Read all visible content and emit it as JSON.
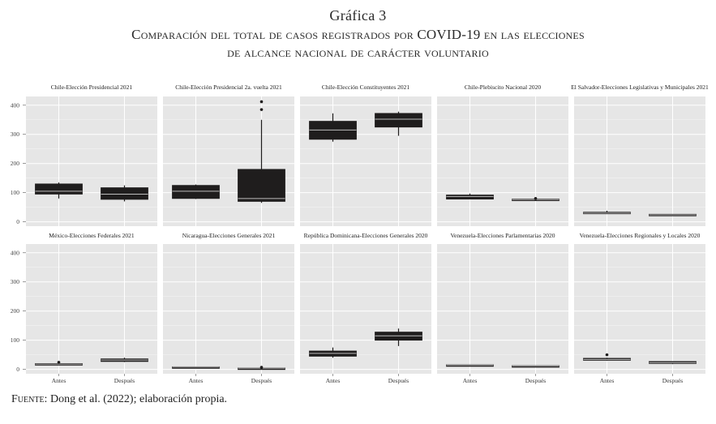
{
  "heading": {
    "line1": "Gráfica 3",
    "line2": "Comparación del total de casos registrados por COVID-19 en las elecciones",
    "line3": "de alcance nacional de carácter voluntario"
  },
  "source": {
    "label": "Fuente:",
    "text": " Dong et al. (2022); elaboración propia."
  },
  "style": {
    "panel_bg": "#e6e6e6",
    "grid_color": "#ffffff",
    "box_fill": "#1f1d1d",
    "median_color": "#bdbdbd"
  },
  "chart_data": {
    "type": "boxplot",
    "categories": [
      "Antes",
      "Después"
    ],
    "y_ticks": [
      0,
      100,
      200,
      300,
      400
    ],
    "ylim": [
      -15,
      430
    ],
    "grid": true,
    "facets": [
      {
        "title": "Chile-Elección Presidencial 2021",
        "boxes": [
          {
            "category": "Antes",
            "min": 80,
            "q1": 95,
            "median": 105,
            "q3": 130,
            "max": 135,
            "outliers": []
          },
          {
            "category": "Después",
            "min": 70,
            "q1": 77,
            "median": 95,
            "q3": 117,
            "max": 125,
            "outliers": []
          }
        ]
      },
      {
        "title": "Chile-Elección Presidencial 2a. vuelta 2021",
        "boxes": [
          {
            "category": "Antes",
            "min": 78,
            "q1": 80,
            "median": 105,
            "q3": 125,
            "max": 128,
            "outliers": []
          },
          {
            "category": "Después",
            "min": 65,
            "q1": 70,
            "median": 80,
            "q3": 180,
            "max": 350,
            "outliers": [
              385,
              412
            ]
          }
        ]
      },
      {
        "title": "Chile-Elección Constituyentes 2021",
        "boxes": [
          {
            "category": "Antes",
            "min": 275,
            "q1": 283,
            "median": 315,
            "q3": 345,
            "max": 372,
            "outliers": []
          },
          {
            "category": "Después",
            "min": 295,
            "q1": 325,
            "median": 352,
            "q3": 372,
            "max": 378,
            "outliers": []
          }
        ]
      },
      {
        "title": "Chile-Plebiscito Nacional 2020",
        "boxes": [
          {
            "category": "Antes",
            "min": 78,
            "q1": 78,
            "median": 87,
            "q3": 92,
            "max": 97,
            "outliers": []
          },
          {
            "category": "Después",
            "min": 74,
            "q1": 74,
            "median": 76,
            "q3": 78,
            "max": 79,
            "outliers": [
              80
            ]
          }
        ]
      },
      {
        "title": "El Salvador-Elecciones Legislativas y Municipales 2021",
        "boxes": [
          {
            "category": "Antes",
            "min": 28,
            "q1": 28,
            "median": 30,
            "q3": 33,
            "max": 38,
            "outliers": []
          },
          {
            "category": "Después",
            "min": 23,
            "q1": 23,
            "median": 24,
            "q3": 26,
            "max": 26,
            "outliers": []
          }
        ]
      },
      {
        "title": "México-Elecciones Federales 2021",
        "boxes": [
          {
            "category": "Antes",
            "min": 17,
            "q1": 17,
            "median": 18,
            "q3": 20,
            "max": 21,
            "outliers": [
              24
            ]
          },
          {
            "category": "Después",
            "min": 25,
            "q1": 27,
            "median": 32,
            "q3": 36,
            "max": 40,
            "outliers": []
          }
        ]
      },
      {
        "title": "Nicaragua-Elecciones Generales 2021",
        "boxes": [
          {
            "category": "Antes",
            "min": 8,
            "q1": 8,
            "median": 8,
            "q3": 9,
            "max": 9,
            "outliers": []
          },
          {
            "category": "Después",
            "min": 3,
            "q1": 3,
            "median": 4,
            "q3": 5,
            "max": 6,
            "outliers": [
              7
            ]
          }
        ]
      },
      {
        "title": "República Dominicana-Elecciones Generales 2020",
        "boxes": [
          {
            "category": "Antes",
            "min": 40,
            "q1": 45,
            "median": 55,
            "q3": 63,
            "max": 75,
            "outliers": []
          },
          {
            "category": "Después",
            "min": 80,
            "q1": 100,
            "median": 115,
            "q3": 128,
            "max": 140,
            "outliers": []
          }
        ]
      },
      {
        "title": "Venezuela-Elecciones Parlamentarias 2020",
        "boxes": [
          {
            "category": "Antes",
            "min": 14,
            "q1": 14,
            "median": 15,
            "q3": 16,
            "max": 16,
            "outliers": []
          },
          {
            "category": "Después",
            "min": 11,
            "q1": 11,
            "median": 12,
            "q3": 13,
            "max": 13,
            "outliers": []
          }
        ]
      },
      {
        "title": "Venezuela-Elecciones Regionales y Locales 2020",
        "boxes": [
          {
            "category": "Antes",
            "min": 30,
            "q1": 31,
            "median": 34,
            "q3": 38,
            "max": 40,
            "outliers": [
              50
            ]
          },
          {
            "category": "Después",
            "min": 18,
            "q1": 20,
            "median": 23,
            "q3": 27,
            "max": 28,
            "outliers": []
          }
        ]
      }
    ]
  }
}
